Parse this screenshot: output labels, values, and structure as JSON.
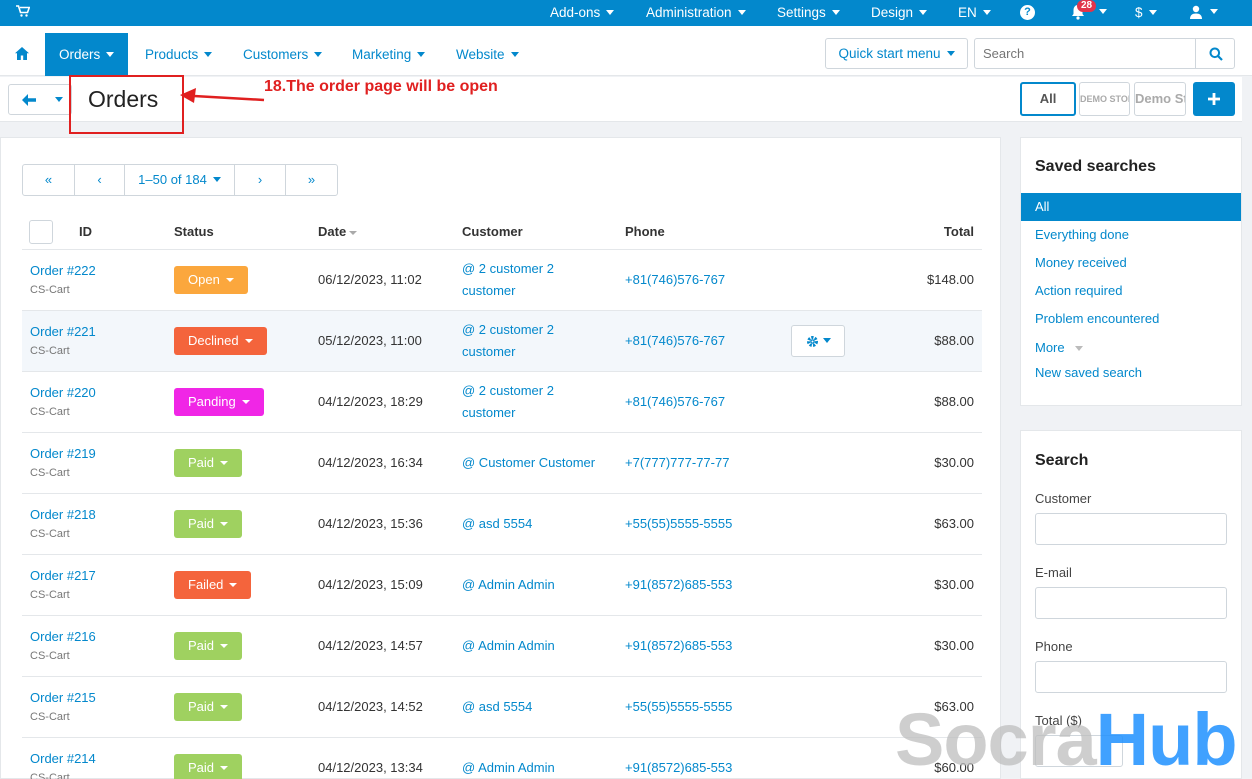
{
  "topbar": {
    "menus": [
      "Add-ons",
      "Administration",
      "Settings",
      "Design",
      "EN"
    ],
    "notification_count": "28",
    "currency": "$"
  },
  "navbar": {
    "items": [
      "Orders",
      "Products",
      "Customers",
      "Marketing",
      "Website"
    ],
    "active_item": "Orders",
    "quick_start": "Quick start menu",
    "search_placeholder": "Search"
  },
  "titlebar": {
    "title": "Orders",
    "stores": [
      "All",
      "DEMO STORE",
      "Demo Store"
    ]
  },
  "annotation": {
    "text": "18.The order page will be open",
    "color": "#e02020"
  },
  "pager": {
    "range": "1–50 of 184",
    "first": "«",
    "prev": "‹",
    "next": "›",
    "last": "»"
  },
  "table": {
    "headers": [
      "ID",
      "Status",
      "Date",
      "Customer",
      "Phone",
      "Total"
    ],
    "rows": [
      {
        "id": "Order #222",
        "store": "CS-Cart",
        "status": "Open",
        "status_color": "#fba73d",
        "date": "06/12/2023, 11:02",
        "customer": "@ 2 customer 2 customer",
        "phone": "+81(746)576-767",
        "total": "$148.00"
      },
      {
        "id": "Order #221",
        "store": "CS-Cart",
        "status": "Declined",
        "status_color": "#f4643c",
        "date": "05/12/2023, 11:00",
        "customer": "@ 2 customer 2 customer",
        "phone": "+81(746)576-767",
        "total": "$88.00"
      },
      {
        "id": "Order #220",
        "store": "CS-Cart",
        "status": "Panding",
        "status_color": "#f026e6",
        "date": "04/12/2023, 18:29",
        "customer": "@ 2 customer 2 customer",
        "phone": "+81(746)576-767",
        "total": "$88.00"
      },
      {
        "id": "Order #219",
        "store": "CS-Cart",
        "status": "Paid",
        "status_color": "#9fd160",
        "date": "04/12/2023, 16:34",
        "customer": "@ Customer Customer",
        "phone": "+7(777)777-77-77",
        "total": "$30.00"
      },
      {
        "id": "Order #218",
        "store": "CS-Cart",
        "status": "Paid",
        "status_color": "#9fd160",
        "date": "04/12/2023, 15:36",
        "customer": "@ asd 5554",
        "phone": "+55(55)5555-5555",
        "total": "$63.00"
      },
      {
        "id": "Order #217",
        "store": "CS-Cart",
        "status": "Failed",
        "status_color": "#f4643c",
        "date": "04/12/2023, 15:09",
        "customer": "@ Admin Admin",
        "phone": "+91(8572)685-553",
        "total": "$30.00"
      },
      {
        "id": "Order #216",
        "store": "CS-Cart",
        "status": "Paid",
        "status_color": "#9fd160",
        "date": "04/12/2023, 14:57",
        "customer": "@ Admin Admin",
        "phone": "+91(8572)685-553",
        "total": "$30.00"
      },
      {
        "id": "Order #215",
        "store": "CS-Cart",
        "status": "Paid",
        "status_color": "#9fd160",
        "date": "04/12/2023, 14:52",
        "customer": "@ asd 5554",
        "phone": "+55(55)5555-5555",
        "total": "$63.00"
      },
      {
        "id": "Order #214",
        "store": "CS-Cart",
        "status": "Paid",
        "status_color": "#9fd160",
        "date": "04/12/2023, 13:34",
        "customer": "@ Admin Admin",
        "phone": "+91(8572)685-553",
        "total": "$60.00"
      }
    ]
  },
  "saved_searches": {
    "title": "Saved searches",
    "items": [
      "All",
      "Everything done",
      "Money received",
      "Action required",
      "Problem encountered",
      "More",
      "New saved search"
    ]
  },
  "search_panel": {
    "title": "Search",
    "fields": [
      "Customer",
      "E-mail",
      "Phone",
      "Total ($)"
    ]
  },
  "watermark": {
    "part1": "Socra",
    "part2": "Hub"
  },
  "colors": {
    "accent": "#0388cc",
    "annotation": "#e02020"
  }
}
